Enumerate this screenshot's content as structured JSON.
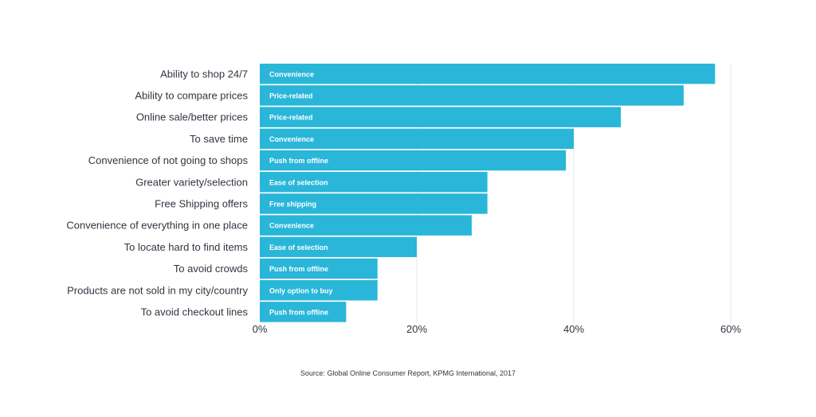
{
  "chart_data": {
    "type": "bar",
    "orientation": "horizontal",
    "categories": [
      "Ability to shop 24/7",
      "Ability to compare prices",
      "Online sale/better prices",
      "To save time",
      "Convenience of not going to shops",
      "Greater variety/selection",
      "Free Shipping offers",
      "Convenience of everything in one place",
      "To locate hard to find items",
      "To avoid crowds",
      "Products are not sold in my city/country",
      "To avoid checkout lines"
    ],
    "values": [
      58,
      54,
      46,
      40,
      39,
      29,
      29,
      27,
      20,
      15,
      15,
      11
    ],
    "bar_labels": [
      "Convenience",
      "Price-related",
      "Price-related",
      "Convenience",
      "Push from offline",
      "Ease of selection",
      "Free shipping",
      "Convenience",
      "Ease of selection",
      "Push from offline",
      "Only option to buy",
      "Push from offline"
    ],
    "xlim": [
      0,
      60
    ],
    "xticks": [
      0,
      20,
      40,
      60
    ],
    "xtick_labels": [
      "0%",
      "20%",
      "40%",
      "60%"
    ],
    "grid": "vertical",
    "bar_color": "#29b6d9",
    "grid_color": "#e3e6ea",
    "text_color": "#2f3640"
  },
  "source": "Source: Global Online Consumer Report, KPMG International, 2017"
}
